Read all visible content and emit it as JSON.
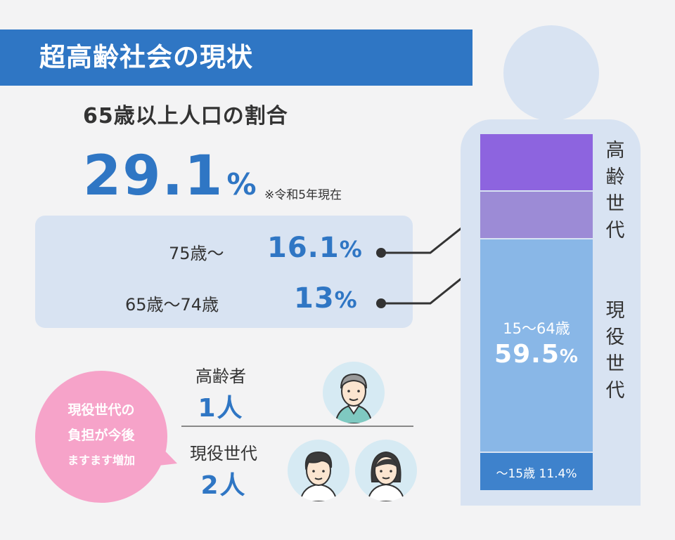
{
  "title": "超高齢社会の現状",
  "subtitle": "65歳以上人口の割合",
  "total": {
    "value": "29.1",
    "unit": "%",
    "note": "※令和5年現在"
  },
  "breakdown": [
    {
      "label": "75歳～",
      "value": "16.1",
      "unit": "%"
    },
    {
      "label": "65歳～74歳",
      "value": "13",
      "unit": "%"
    }
  ],
  "burden": {
    "bubble_lines": [
      "現役世代の",
      "負担が今後",
      "ますます増加"
    ],
    "elderly": {
      "label": "高齢者",
      "count": "1人"
    },
    "working": {
      "label": "現役世代",
      "count": "2人"
    }
  },
  "bar": {
    "segments": [
      {
        "group": "高齢世代",
        "range": "75歳～",
        "value": 16.1,
        "color": "#8d64df"
      },
      {
        "group": "高齢世代",
        "range": "65歳～74歳",
        "value": 13,
        "color": "#9c8bd6"
      },
      {
        "group": "現役世代",
        "range": "15～64歳",
        "value": 59.5,
        "color": "#89b7e7"
      },
      {
        "group": "",
        "range": "～15歳",
        "value": 11.4,
        "color": "#3e82cc"
      }
    ],
    "working_range": "15～64歳",
    "working_value": "59.5",
    "working_unit": "%",
    "young_label": "～15歳 11.4%",
    "elderly_group": [
      "高",
      "齢",
      "世",
      "代"
    ],
    "working_group": [
      "現",
      "役",
      "世",
      "代"
    ]
  },
  "colors": {
    "accent": "#2f76c4",
    "panel": "#d8e3f2",
    "bubble": "#f6a3c9"
  }
}
